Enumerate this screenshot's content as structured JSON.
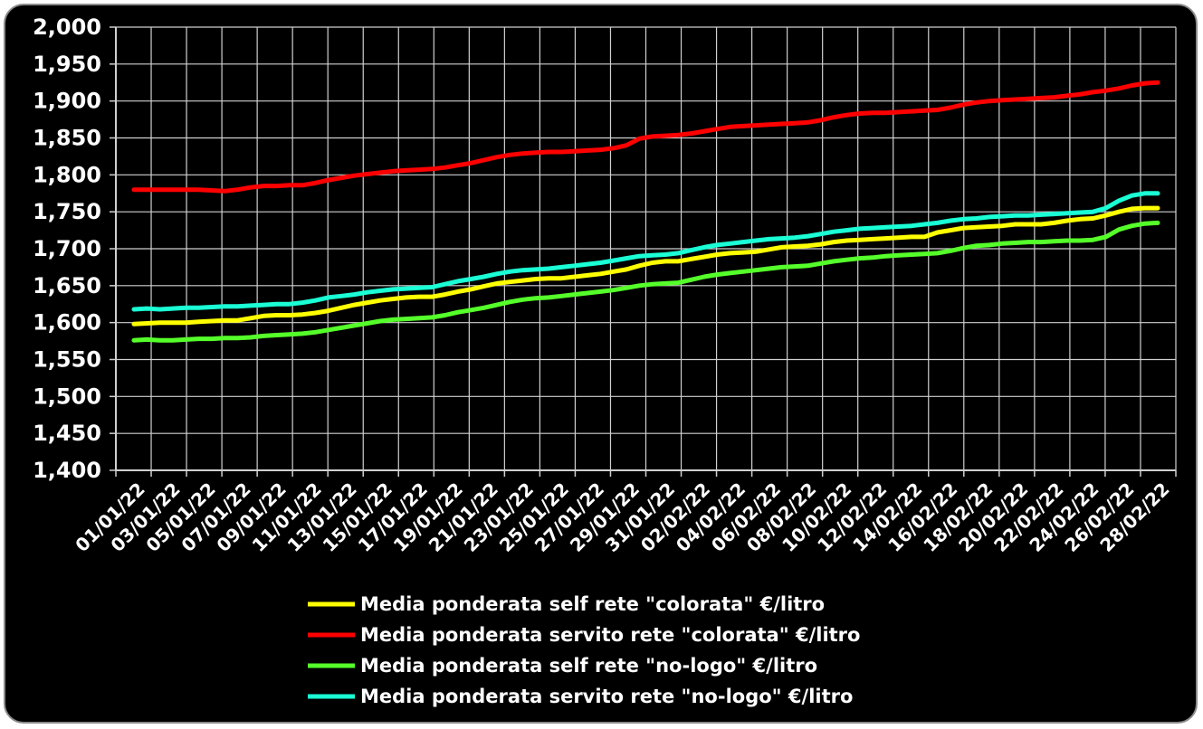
{
  "chart_data": {
    "type": "line",
    "title": "",
    "xlabel": "",
    "ylabel": "",
    "ylim": [
      1.4,
      2.0
    ],
    "y_ticks": [
      "1,400",
      "1,450",
      "1,500",
      "1,550",
      "1,600",
      "1,650",
      "1,700",
      "1,750",
      "1,800",
      "1,850",
      "1,900",
      "1,950",
      "2,000"
    ],
    "x_tick_labels": [
      "01/01/22",
      "03/01/22",
      "05/01/22",
      "07/01/22",
      "09/01/22",
      "11/01/22",
      "13/01/22",
      "15/01/22",
      "17/01/22",
      "19/01/22",
      "21/01/22",
      "23/01/22",
      "25/01/22",
      "27/01/22",
      "29/01/22",
      "31/01/22",
      "02/02/22",
      "04/02/22",
      "06/02/22",
      "08/02/22",
      "10/02/22",
      "12/02/22",
      "14/02/22",
      "16/02/22",
      "18/02/22",
      "20/02/22",
      "22/02/22",
      "24/02/22",
      "26/02/22",
      "28/02/22"
    ],
    "grid": true,
    "legend_position": "bottom",
    "background": "#000000",
    "series": [
      {
        "name": "Media ponderata self rete \"colorata\" €/litro",
        "color": "#ffff00",
        "values": [
          1.598,
          1.599,
          1.6,
          1.6,
          1.6,
          1.601,
          1.602,
          1.603,
          1.603,
          1.606,
          1.609,
          1.61,
          1.61,
          1.611,
          1.613,
          1.616,
          1.62,
          1.624,
          1.627,
          1.63,
          1.632,
          1.634,
          1.635,
          1.635,
          1.638,
          1.642,
          1.645,
          1.649,
          1.653,
          1.655,
          1.657,
          1.659,
          1.66,
          1.66,
          1.662,
          1.664,
          1.666,
          1.669,
          1.672,
          1.677,
          1.681,
          1.683,
          1.683,
          1.686,
          1.689,
          1.692,
          1.694,
          1.695,
          1.696,
          1.699,
          1.702,
          1.703,
          1.704,
          1.706,
          1.709,
          1.711,
          1.712,
          1.713,
          1.714,
          1.715,
          1.716,
          1.716,
          1.722,
          1.725,
          1.728,
          1.729,
          1.73,
          1.731,
          1.733,
          1.733,
          1.733,
          1.735,
          1.738,
          1.74,
          1.741,
          1.745,
          1.75,
          1.754,
          1.755,
          1.755
        ]
      },
      {
        "name": "Media ponderata servito rete \"colorata\" €/litro",
        "color": "#ff0000",
        "values": [
          1.78,
          1.78,
          1.78,
          1.78,
          1.78,
          1.78,
          1.779,
          1.778,
          1.78,
          1.783,
          1.785,
          1.785,
          1.786,
          1.786,
          1.789,
          1.793,
          1.796,
          1.799,
          1.801,
          1.803,
          1.805,
          1.806,
          1.807,
          1.808,
          1.81,
          1.813,
          1.816,
          1.82,
          1.824,
          1.827,
          1.829,
          1.83,
          1.831,
          1.831,
          1.832,
          1.833,
          1.834,
          1.836,
          1.84,
          1.849,
          1.852,
          1.853,
          1.854,
          1.856,
          1.859,
          1.862,
          1.865,
          1.866,
          1.867,
          1.868,
          1.869,
          1.87,
          1.871,
          1.874,
          1.878,
          1.881,
          1.883,
          1.884,
          1.884,
          1.885,
          1.886,
          1.887,
          1.888,
          1.891,
          1.895,
          1.898,
          1.9,
          1.901,
          1.902,
          1.903,
          1.904,
          1.905,
          1.907,
          1.909,
          1.912,
          1.914,
          1.917,
          1.921,
          1.924,
          1.925
        ]
      },
      {
        "name": "Media ponderata self rete \"no-logo\" €/litro",
        "color": "#55ff2a",
        "values": [
          1.576,
          1.577,
          1.576,
          1.576,
          1.577,
          1.578,
          1.578,
          1.579,
          1.579,
          1.58,
          1.582,
          1.583,
          1.584,
          1.585,
          1.587,
          1.59,
          1.593,
          1.596,
          1.599,
          1.602,
          1.604,
          1.605,
          1.606,
          1.607,
          1.61,
          1.614,
          1.617,
          1.62,
          1.624,
          1.628,
          1.631,
          1.633,
          1.634,
          1.636,
          1.638,
          1.64,
          1.642,
          1.644,
          1.647,
          1.65,
          1.652,
          1.653,
          1.654,
          1.658,
          1.662,
          1.665,
          1.667,
          1.669,
          1.671,
          1.673,
          1.675,
          1.676,
          1.677,
          1.68,
          1.683,
          1.685,
          1.687,
          1.688,
          1.69,
          1.691,
          1.692,
          1.693,
          1.694,
          1.697,
          1.701,
          1.704,
          1.705,
          1.707,
          1.708,
          1.709,
          1.709,
          1.71,
          1.711,
          1.711,
          1.712,
          1.716,
          1.726,
          1.731,
          1.734,
          1.735
        ]
      },
      {
        "name": "Media ponderata servito rete \"no-logo\" €/litro",
        "color": "#1affd5",
        "values": [
          1.618,
          1.619,
          1.618,
          1.619,
          1.62,
          1.62,
          1.621,
          1.622,
          1.622,
          1.623,
          1.624,
          1.625,
          1.625,
          1.627,
          1.63,
          1.634,
          1.636,
          1.638,
          1.641,
          1.643,
          1.645,
          1.646,
          1.647,
          1.648,
          1.652,
          1.656,
          1.659,
          1.662,
          1.666,
          1.669,
          1.671,
          1.672,
          1.673,
          1.675,
          1.677,
          1.679,
          1.681,
          1.684,
          1.687,
          1.69,
          1.691,
          1.692,
          1.694,
          1.698,
          1.702,
          1.705,
          1.707,
          1.709,
          1.711,
          1.713,
          1.714,
          1.715,
          1.717,
          1.72,
          1.723,
          1.725,
          1.727,
          1.728,
          1.729,
          1.73,
          1.731,
          1.733,
          1.735,
          1.738,
          1.74,
          1.741,
          1.743,
          1.744,
          1.745,
          1.745,
          1.746,
          1.747,
          1.748,
          1.749,
          1.75,
          1.755,
          1.765,
          1.772,
          1.775,
          1.775
        ]
      }
    ]
  }
}
